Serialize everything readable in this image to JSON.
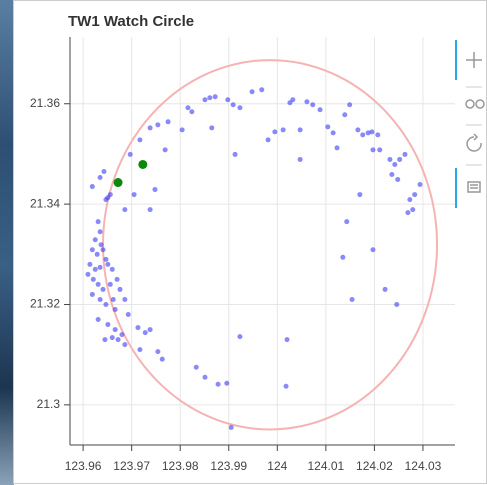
{
  "chart_data": {
    "type": "scatter",
    "title": "TW1 Watch Circle",
    "xlim": [
      123.9573,
      124.0366
    ],
    "ylim": [
      21.292,
      21.3733
    ],
    "xticks": [
      123.96,
      123.97,
      123.98,
      123.99,
      124,
      124.01,
      124.02,
      124.03
    ],
    "yticks": [
      21.3,
      21.32,
      21.34,
      21.36
    ],
    "grid": true,
    "circle": {
      "x": 123.9985,
      "y": 21.3319,
      "rx": 0.0344,
      "ry": 0.0368,
      "color": "#f6b3b3"
    },
    "series": [
      {
        "color": "#3b3bf5",
        "x": [
          123.9619,
          123.9635,
          123.9643,
          123.9651,
          123.9647,
          123.9656,
          123.9631,
          123.9635,
          123.9625,
          123.9637,
          123.9619,
          123.9629,
          123.9641,
          123.9647,
          123.9614,
          123.9625,
          123.9635,
          123.9651,
          123.966,
          123.961,
          123.9621,
          123.9631,
          123.9641,
          123.9656,
          123.967,
          123.9676,
          123.9619,
          123.9635,
          123.9647,
          123.9662,
          123.9686,
          123.9631,
          123.9651,
          123.9666,
          123.968,
          123.9672,
          123.9686,
          123.9713,
          123.9728,
          123.9717,
          123.9754,
          123.9763,
          123.9738,
          123.9666,
          123.9693,
          123.9645,
          123.966,
          123.9697,
          123.9717,
          123.9738,
          123.9754,
          123.9775,
          123.9816,
          123.9824,
          123.9851,
          123.9861,
          123.9872,
          123.9898,
          123.9909,
          123.9923,
          123.9948,
          123.9968,
          123.9865,
          123.9804,
          123.9769,
          123.9738,
          123.9748,
          123.9686,
          123.9705,
          123.9981,
          123.9995,
          124.0012,
          124.0026,
          124.0032,
          124.0047,
          124.0061,
          124.0073,
          124.0088,
          124.0104,
          124.0115,
          124.0123,
          124.0139,
          124.0149,
          124.0166,
          124.0176,
          124.0187,
          124.0195,
          124.0207,
          124.0197,
          124.0211,
          124.0232,
          124.0242,
          124.0252,
          124.0263,
          124.0236,
          124.0248,
          124.0273,
          124.0279,
          124.0269,
          124.0294,
          124.0283,
          124.017,
          124.0143,
          124.0135,
          124.0154,
          124.0197,
          124.0222,
          124.0246,
          124.0047,
          123.9913,
          123.9833,
          123.9851,
          123.9878,
          123.9896,
          123.9923,
          124.002,
          124.0018,
          123.9905
        ],
        "values": [
          21.3435,
          21.3453,
          21.3465,
          21.3413,
          21.3409,
          21.3419,
          21.3365,
          21.3345,
          21.3329,
          21.3319,
          21.3309,
          21.33,
          21.3309,
          21.329,
          21.328,
          21.327,
          21.3274,
          21.328,
          21.327,
          21.326,
          21.325,
          21.324,
          21.323,
          21.324,
          21.325,
          21.323,
          21.322,
          21.321,
          21.32,
          21.321,
          21.321,
          21.317,
          21.316,
          21.315,
          21.314,
          21.313,
          21.312,
          21.3154,
          21.3144,
          21.311,
          21.3106,
          21.3091,
          21.315,
          21.319,
          21.318,
          21.313,
          21.3134,
          21.3499,
          21.3528,
          21.3552,
          21.3558,
          21.3564,
          21.3592,
          21.3584,
          21.3608,
          21.3612,
          21.3614,
          21.3608,
          21.3598,
          21.3592,
          21.3624,
          21.3628,
          21.3552,
          21.3548,
          21.3508,
          21.3389,
          21.3429,
          21.3389,
          21.3419,
          21.3528,
          21.3544,
          21.3548,
          21.3602,
          21.3608,
          21.3548,
          21.3604,
          21.3598,
          21.3588,
          21.3554,
          21.3542,
          21.3512,
          21.3578,
          21.3598,
          21.3548,
          21.3538,
          21.3542,
          21.3544,
          21.3538,
          21.3508,
          21.3508,
          21.3489,
          21.3479,
          21.3489,
          21.3499,
          21.3459,
          21.3449,
          21.3409,
          21.3389,
          21.3383,
          21.3439,
          21.3419,
          21.3419,
          21.3365,
          21.3294,
          21.321,
          21.3309,
          21.323,
          21.32,
          21.3489,
          21.3499,
          21.3075,
          21.3055,
          21.3041,
          21.3043,
          21.3136,
          21.313,
          21.3037,
          21.2955
        ]
      },
      {
        "color": "#0a8a0a",
        "x": [
          123.9672,
          123.9723
        ],
        "values": [
          21.3443,
          21.3479
        ]
      }
    ]
  }
}
